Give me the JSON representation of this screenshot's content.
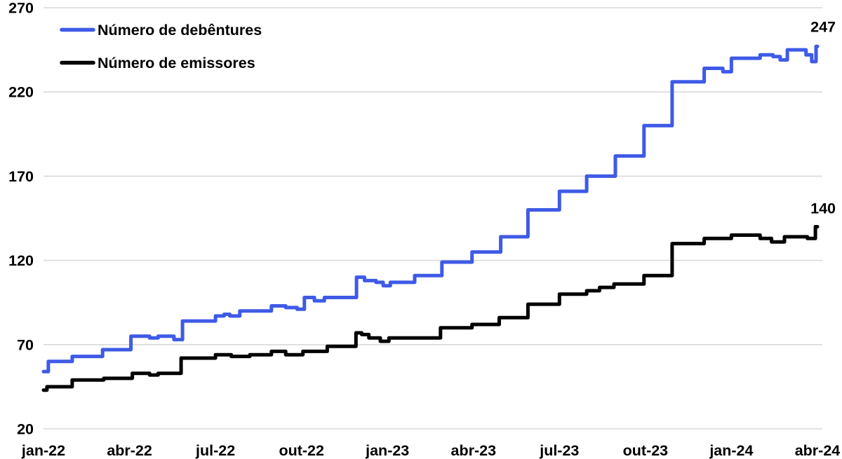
{
  "page": {
    "background": "#FFFFFF"
  },
  "chart_data": {
    "type": "line",
    "subtype": "step-after",
    "title": "",
    "xlabel": "",
    "ylabel": "",
    "grid": "horizontal",
    "legend_position": "top-left-inside",
    "colors": {
      "grid": "#D9D9D9",
      "text": "#000000",
      "background": "#FFFFFF"
    },
    "x_axis": {
      "unit": "months since jan-2022",
      "total_months": 27,
      "tick_labels": [
        "jan-22",
        "abr-22",
        "jul-22",
        "out-22",
        "jan-23",
        "abr-23",
        "jul-23",
        "out-23",
        "jan-24",
        "abr-24"
      ],
      "tick_month_index": [
        0,
        3,
        6,
        9,
        12,
        15,
        18,
        21,
        24,
        27
      ]
    },
    "y_axis": {
      "ticks": [
        20,
        70,
        120,
        170,
        220,
        270
      ],
      "range": [
        20,
        270
      ]
    },
    "series": [
      {
        "name": "Número de debêntures",
        "color": "#3F5AE6",
        "end_label": "247",
        "final_value": 247,
        "points": [
          [
            0,
            54
          ],
          [
            0.17,
            60
          ],
          [
            1.0,
            63
          ],
          [
            2.06,
            67
          ],
          [
            3.05,
            75
          ],
          [
            3.7,
            74
          ],
          [
            4.0,
            75
          ],
          [
            4.55,
            73
          ],
          [
            4.85,
            84
          ],
          [
            6.0,
            87
          ],
          [
            6.3,
            88
          ],
          [
            6.5,
            87
          ],
          [
            6.85,
            90
          ],
          [
            7.95,
            93
          ],
          [
            8.45,
            92
          ],
          [
            8.85,
            91
          ],
          [
            9.1,
            98
          ],
          [
            9.45,
            96
          ],
          [
            9.8,
            98
          ],
          [
            10.92,
            110
          ],
          [
            11.2,
            108
          ],
          [
            11.6,
            107
          ],
          [
            11.85,
            105
          ],
          [
            12.1,
            107
          ],
          [
            12.95,
            111
          ],
          [
            13.9,
            119
          ],
          [
            14.95,
            125
          ],
          [
            15.95,
            134
          ],
          [
            16.9,
            150
          ],
          [
            18.0,
            161
          ],
          [
            18.95,
            170
          ],
          [
            19.95,
            182
          ],
          [
            20.95,
            200
          ],
          [
            21.93,
            226
          ],
          [
            23.05,
            234
          ],
          [
            23.7,
            232
          ],
          [
            24.0,
            240
          ],
          [
            25.0,
            242
          ],
          [
            25.45,
            241
          ],
          [
            25.7,
            239
          ],
          [
            25.95,
            245
          ],
          [
            26.6,
            242
          ],
          [
            26.8,
            238
          ],
          [
            26.95,
            247
          ]
        ]
      },
      {
        "name": "Número de emissores",
        "color": "#000000",
        "end_label": "140",
        "final_value": 140,
        "points": [
          [
            0,
            43
          ],
          [
            0.12,
            45
          ],
          [
            1.0,
            49
          ],
          [
            2.1,
            50
          ],
          [
            3.1,
            53
          ],
          [
            3.7,
            52
          ],
          [
            4.0,
            53
          ],
          [
            4.8,
            62
          ],
          [
            6.0,
            64
          ],
          [
            6.55,
            63
          ],
          [
            7.2,
            64
          ],
          [
            7.95,
            66
          ],
          [
            8.45,
            64
          ],
          [
            9.05,
            66
          ],
          [
            9.9,
            69
          ],
          [
            10.9,
            77
          ],
          [
            11.1,
            76
          ],
          [
            11.35,
            74
          ],
          [
            11.75,
            72
          ],
          [
            12.05,
            74
          ],
          [
            13.85,
            80
          ],
          [
            14.95,
            82
          ],
          [
            15.9,
            86
          ],
          [
            16.9,
            94
          ],
          [
            18.0,
            100
          ],
          [
            18.95,
            102
          ],
          [
            19.4,
            104
          ],
          [
            19.9,
            106
          ],
          [
            20.95,
            111
          ],
          [
            21.93,
            130
          ],
          [
            23.05,
            133
          ],
          [
            24.0,
            135
          ],
          [
            25.0,
            133
          ],
          [
            25.4,
            131
          ],
          [
            25.85,
            134
          ],
          [
            26.65,
            133
          ],
          [
            26.93,
            140
          ]
        ]
      }
    ]
  }
}
